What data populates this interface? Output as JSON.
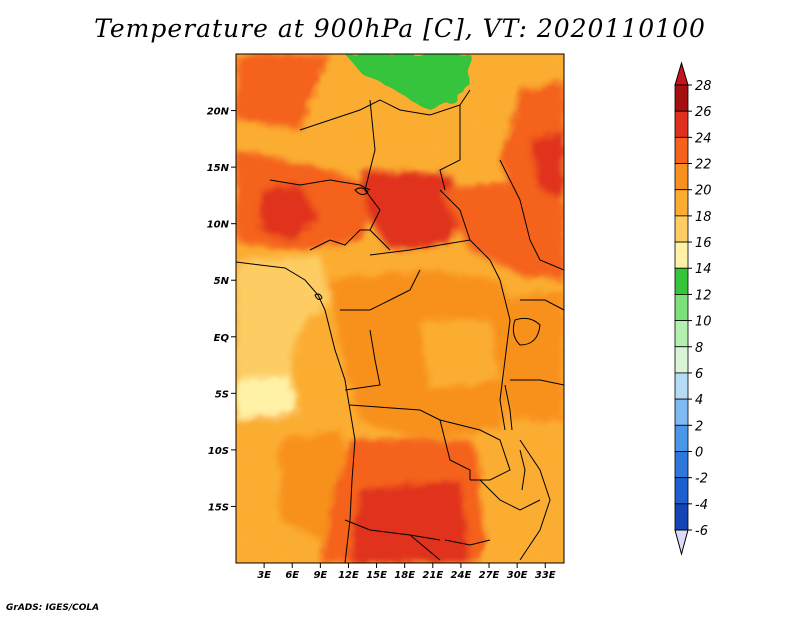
{
  "title": "Temperature at 900hPa [C], VT: 2020110100",
  "credit": "GrADS: IGES/COLA",
  "map": {
    "lon_range": [
      0,
      35
    ],
    "lat_range": [
      -20,
      25
    ],
    "lat_ticks": [
      {
        "value": 20,
        "label": "20N"
      },
      {
        "value": 15,
        "label": "15N"
      },
      {
        "value": 10,
        "label": "10N"
      },
      {
        "value": 5,
        "label": "5N"
      },
      {
        "value": 0,
        "label": "EQ"
      },
      {
        "value": -5,
        "label": "5S"
      },
      {
        "value": -10,
        "label": "10S"
      },
      {
        "value": -15,
        "label": "15S"
      }
    ],
    "lon_ticks": [
      {
        "value": 3,
        "label": "3E"
      },
      {
        "value": 6,
        "label": "6E"
      },
      {
        "value": 9,
        "label": "9E"
      },
      {
        "value": 12,
        "label": "12E"
      },
      {
        "value": 15,
        "label": "15E"
      },
      {
        "value": 18,
        "label": "18E"
      },
      {
        "value": 21,
        "label": "21E"
      },
      {
        "value": 24,
        "label": "24E"
      },
      {
        "value": 27,
        "label": "27E"
      },
      {
        "value": 30,
        "label": "30E"
      },
      {
        "value": 33,
        "label": "33E"
      }
    ]
  },
  "colorbar": {
    "levels": [
      {
        "label": "28",
        "color": "#a50f0f"
      },
      {
        "label": "26",
        "color": "#e0301e"
      },
      {
        "label": "24",
        "color": "#f4621e"
      },
      {
        "label": "22",
        "color": "#f8901f"
      },
      {
        "label": "20",
        "color": "#fbad32"
      },
      {
        "label": "18",
        "color": "#fdcd64"
      },
      {
        "label": "16",
        "color": "#fff2a6"
      },
      {
        "label": "14",
        "color": "#35c43a"
      },
      {
        "label": "12",
        "color": "#7de17a"
      },
      {
        "label": "10",
        "color": "#b4f0b0"
      },
      {
        "label": "8",
        "color": "#d9f5d5"
      },
      {
        "label": "6",
        "color": "#b5dcf7"
      },
      {
        "label": "4",
        "color": "#7fbaf2"
      },
      {
        "label": "2",
        "color": "#4a96e8"
      },
      {
        "label": "0",
        "color": "#2d77dd"
      },
      {
        "label": "-2",
        "color": "#1e5fd0"
      },
      {
        "label": "-4",
        "color": "#1444b6"
      },
      {
        "label": "-6",
        "color": "#0b2490"
      }
    ],
    "top_color": "#c8141e",
    "bottom_color": "#dcdcf8"
  }
}
